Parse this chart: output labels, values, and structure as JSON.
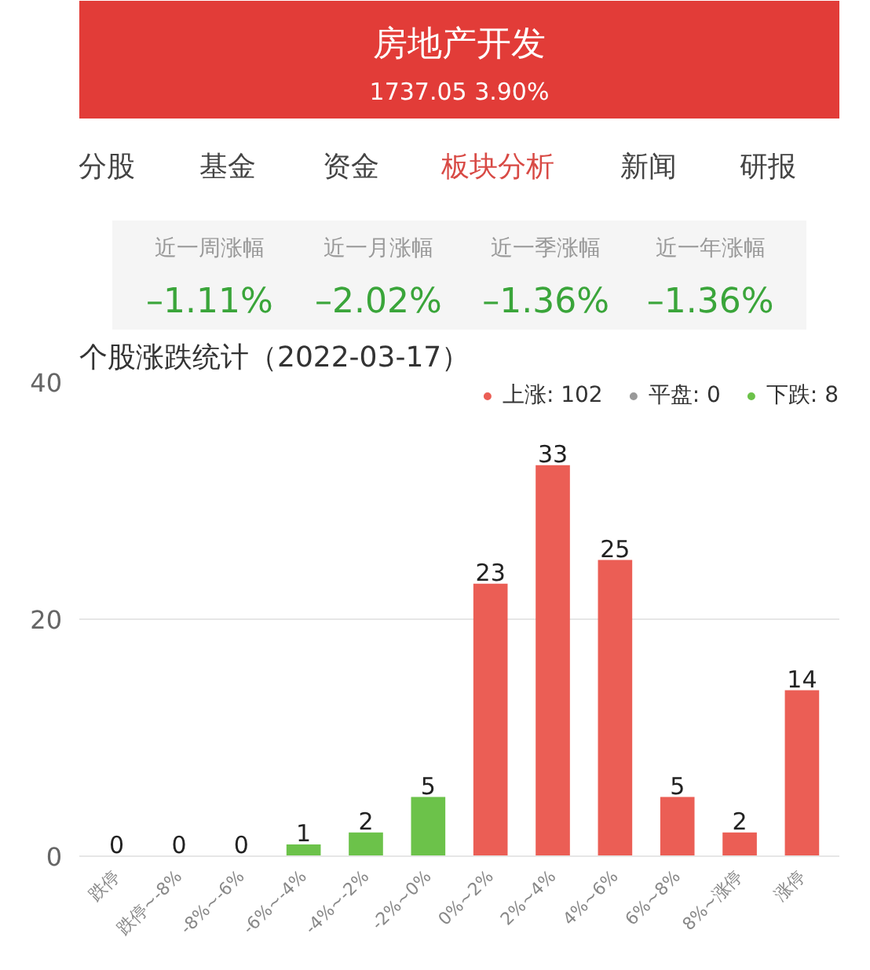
{
  "chart_data": [
    {
      "type": "other",
      "title": "房地产开发",
      "subtitle": "1737.05 3.90%",
      "annotations": [
        "分股",
        "基金",
        "资金",
        "板块分析",
        "新闻",
        "研报",
        "近一周涨幅",
        "近一月涨幅",
        "近一季涨幅",
        "近一年涨幅",
        "–1.11%",
        "–2.02%",
        "–1.36%",
        "–1.36%"
      ]
    },
    {
      "type": "bar",
      "title": "个股涨跌统计（2022-03-17）",
      "categories": [
        "跌停",
        "跌停~-8%",
        "-8%~-6%",
        "-6%~-4%",
        "-4%~-2%",
        "-2%~0%",
        "0%~2%",
        "2%~4%",
        "4%~6%",
        "6%~8%",
        "8%~涨停",
        "涨停"
      ],
      "series": [
        {
          "name": "上涨: 102",
          "color": "#eb5e55",
          "values": [
            null,
            null,
            null,
            null,
            null,
            null,
            23,
            33,
            25,
            5,
            2,
            14
          ]
        },
        {
          "name": "平盘: 0",
          "color": "#999999",
          "values": [
            null,
            null,
            null,
            null,
            null,
            null,
            null,
            null,
            null,
            null,
            null,
            null
          ]
        },
        {
          "name": "下跌: 8",
          "color": "#6cc24a",
          "values": [
            0,
            0,
            0,
            1,
            2,
            5,
            null,
            null,
            null,
            null,
            null,
            null
          ]
        }
      ],
      "ylim": [
        0,
        40
      ],
      "yticks": [
        0,
        20,
        40
      ],
      "grid": "y",
      "data_labels": true,
      "legend": "top right"
    }
  ]
}
